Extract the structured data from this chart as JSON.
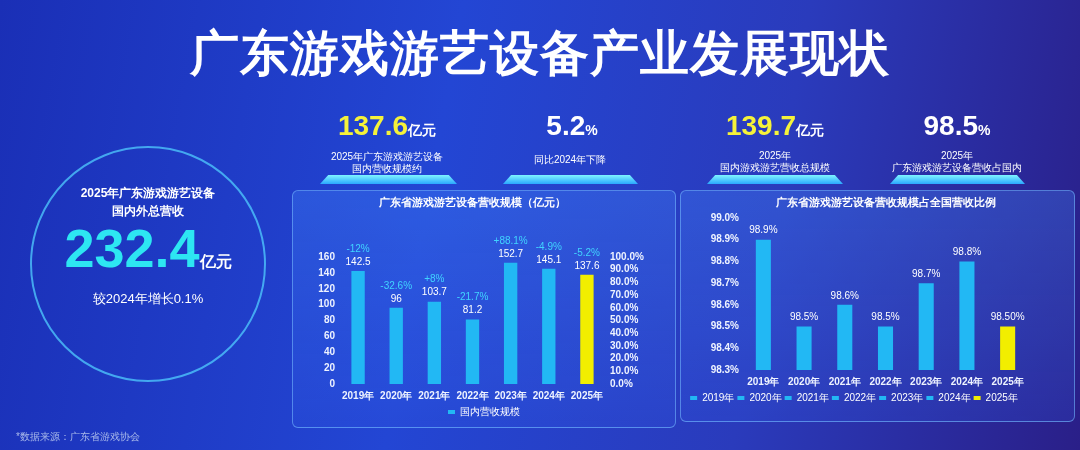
{
  "chart_data": [
    {
      "type": "other",
      "title": "广东游戏游艺设备产业发展现状",
      "annotations": [
        "2025年广东游戏游艺设备",
        "国内外总营收",
        "232.4",
        "亿元",
        "较2024年增长0.1%",
        "137.6",
        "亿元",
        "2025年广东游戏游艺设备",
        "国内营收规模约",
        "5.2",
        "%",
        "同比2024年下降",
        "139.7",
        "亿元",
        "2025年",
        "国内游戏游艺营收总规模",
        "98.5",
        "%",
        "2025年",
        "广东游戏游艺设备营收占国内",
        "*数据来源：广东省游戏协会"
      ]
    },
    {
      "type": "bar",
      "title": "广东省游戏游艺设备营收规模（亿元）",
      "categories": [
        "2019年",
        "2020年",
        "2021年",
        "2022年",
        "2023年",
        "2024年",
        "2025年"
      ],
      "series": [
        {
          "name": "国内营收规模",
          "color": "#22b8f4",
          "colors": [
            "#22b8f4",
            "#22b8f4",
            "#22b8f4",
            "#22b8f4",
            "#22b8f4",
            "#22b8f4",
            "#f2ee00"
          ],
          "values": [
            142.5,
            96,
            103.7,
            81.2,
            152.7,
            145.1,
            137.6
          ]
        }
      ],
      "ylim": [
        0,
        160
      ],
      "yticks": [
        0,
        20,
        40,
        60,
        80,
        100,
        120,
        140,
        160
      ],
      "y2lim": [
        0,
        100
      ],
      "y2ticks": [
        {
          "value": 0,
          "label": "0.0%"
        },
        {
          "value": 10,
          "label": "10.0%"
        },
        {
          "value": 20,
          "label": "20.0%"
        },
        {
          "value": 30,
          "label": "30.0%"
        },
        {
          "value": 40,
          "label": "40.0%"
        },
        {
          "value": 50,
          "label": "50.0%"
        },
        {
          "value": 60,
          "label": "60.0%"
        },
        {
          "value": 70,
          "label": "70.0%"
        },
        {
          "value": 80,
          "label": "80.0%"
        },
        {
          "value": 90,
          "label": "90.0%"
        },
        {
          "value": 100,
          "label": "100.0%"
        }
      ],
      "data_labels": true,
      "annotations": [
        {
          "text": "-12%",
          "x": "2019年",
          "y": 142.5
        },
        {
          "text": "-32.6%",
          "x": "2020年",
          "y": 96
        },
        {
          "text": "+8%",
          "x": "2021年",
          "y": 103.7
        },
        {
          "text": "-21.7%",
          "x": "2022年",
          "y": 81.2
        },
        {
          "text": "+88.1%",
          "x": "2023年",
          "y": 152.7
        },
        {
          "text": "-4.9%",
          "x": "2024年",
          "y": 145.1
        },
        {
          "text": "-5.2%",
          "x": "2025年",
          "y": 137.6
        }
      ],
      "legend": "bottom"
    },
    {
      "type": "bar",
      "title": "广东省游戏游艺设备营收规模占全国营收比例",
      "categories": [
        "2019年",
        "2020年",
        "2021年",
        "2022年",
        "2023年",
        "2024年",
        "2025年"
      ],
      "series": [
        {
          "name": "2019年",
          "color": "#22b8f4",
          "values": [
            98.9,
            null,
            null,
            null,
            null,
            null,
            null
          ],
          "value_labels": [
            "98.9%",
            null,
            null,
            null,
            null,
            null,
            null
          ]
        },
        {
          "name": "2020年",
          "color": "#22b8f4",
          "values": [
            null,
            98.5,
            null,
            null,
            null,
            null,
            null
          ],
          "value_labels": [
            null,
            "98.5%",
            null,
            null,
            null,
            null,
            null
          ]
        },
        {
          "name": "2021年",
          "color": "#22b8f4",
          "values": [
            null,
            null,
            98.6,
            null,
            null,
            null,
            null
          ],
          "value_labels": [
            null,
            null,
            "98.6%",
            null,
            null,
            null,
            null
          ]
        },
        {
          "name": "2022年",
          "color": "#22b8f4",
          "values": [
            null,
            null,
            null,
            98.5,
            null,
            null,
            null
          ],
          "value_labels": [
            null,
            null,
            null,
            "98.5%",
            null,
            null,
            null
          ]
        },
        {
          "name": "2023年",
          "color": "#22b8f4",
          "values": [
            null,
            null,
            null,
            null,
            98.7,
            null,
            null
          ],
          "value_labels": [
            null,
            null,
            null,
            null,
            "98.7%",
            null,
            null
          ]
        },
        {
          "name": "2024年",
          "color": "#22b8f4",
          "values": [
            null,
            null,
            null,
            null,
            null,
            98.8,
            null
          ],
          "value_labels": [
            null,
            null,
            null,
            null,
            null,
            "98.8%",
            null
          ]
        },
        {
          "name": "2025年",
          "color": "#f2ee00",
          "values": [
            null,
            null,
            null,
            null,
            null,
            null,
            98.5
          ],
          "value_labels": [
            null,
            null,
            null,
            null,
            null,
            null,
            "98.50%"
          ]
        }
      ],
      "ylim": [
        98.3,
        99.0
      ],
      "yticks": [
        {
          "value": 98.3,
          "label": "98.3%"
        },
        {
          "value": 98.4,
          "label": "98.4%"
        },
        {
          "value": 98.5,
          "label": "98.5%"
        },
        {
          "value": 98.6,
          "label": "98.6%"
        },
        {
          "value": 98.7,
          "label": "98.7%"
        },
        {
          "value": 98.8,
          "label": "98.8%"
        },
        {
          "value": 98.9,
          "label": "98.9%"
        },
        {
          "value": 99.0,
          "label": "99.0%"
        }
      ],
      "legend": "bottom"
    }
  ]
}
